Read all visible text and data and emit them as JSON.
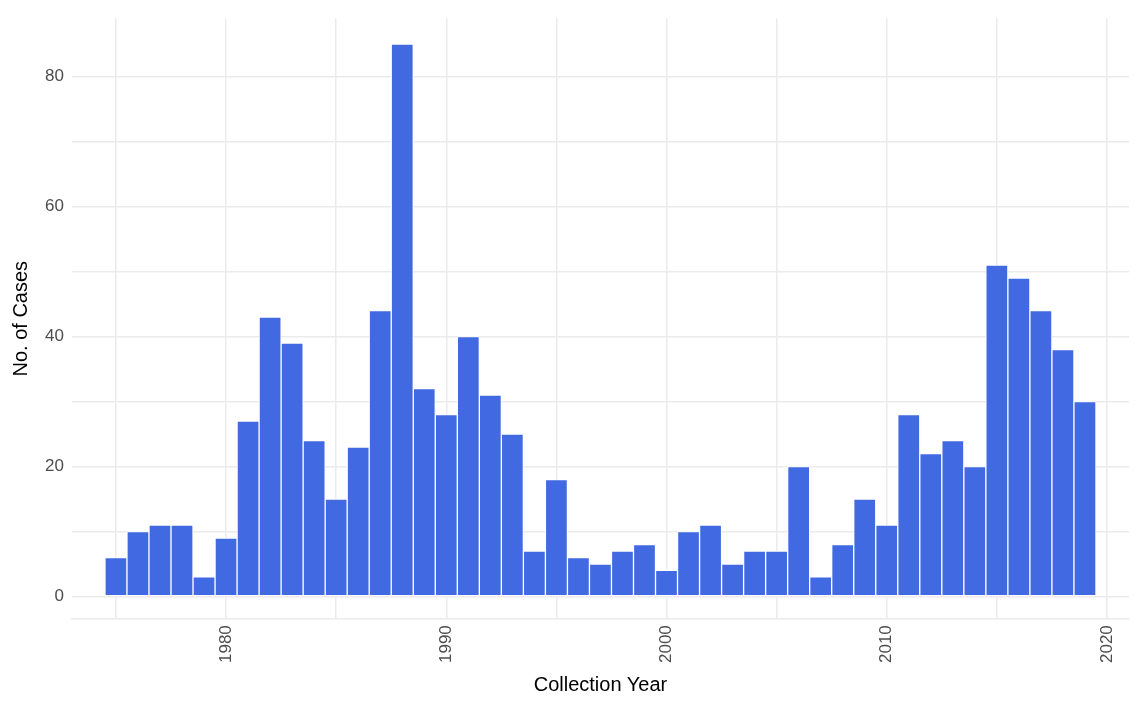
{
  "chart_data": {
    "type": "bar",
    "xlabel": "Collection Year",
    "ylabel": "No. of Cases",
    "color": "#4169e1",
    "x": [
      1975,
      1976,
      1977,
      1978,
      1979,
      1980,
      1981,
      1982,
      1983,
      1984,
      1985,
      1986,
      1987,
      1988,
      1989,
      1990,
      1991,
      1992,
      1993,
      1994,
      1995,
      1996,
      1997,
      1998,
      1999,
      2000,
      2001,
      2002,
      2003,
      2004,
      2005,
      2006,
      2007,
      2008,
      2009,
      2010,
      2011,
      2012,
      2013,
      2014,
      2015,
      2016,
      2017,
      2018,
      2019
    ],
    "values": [
      6,
      10,
      11,
      11,
      3,
      9,
      27,
      43,
      39,
      24,
      15,
      23,
      44,
      85,
      32,
      28,
      40,
      31,
      25,
      7,
      18,
      6,
      5,
      7,
      8,
      4,
      10,
      11,
      5,
      7,
      7,
      20,
      3,
      8,
      15,
      11,
      28,
      22,
      24,
      20,
      51,
      49,
      44,
      38,
      30
    ],
    "xlim": [
      1973,
      2021
    ],
    "xticks": [
      {
        "value": 1975,
        "label": null
      },
      1980,
      {
        "value": 1985,
        "label": null
      },
      1990,
      {
        "value": 1995,
        "label": null
      },
      2000,
      {
        "value": 2005,
        "label": null
      },
      2010,
      {
        "value": 2015,
        "label": null
      },
      2020
    ],
    "ylim": [
      -3.5,
      89
    ],
    "yticks": [
      0,
      {
        "value": 10,
        "label": null
      },
      20,
      {
        "value": 30,
        "label": null
      },
      40,
      {
        "value": 50,
        "label": null
      },
      60,
      {
        "value": 70,
        "label": null
      },
      80
    ],
    "grid": true
  }
}
